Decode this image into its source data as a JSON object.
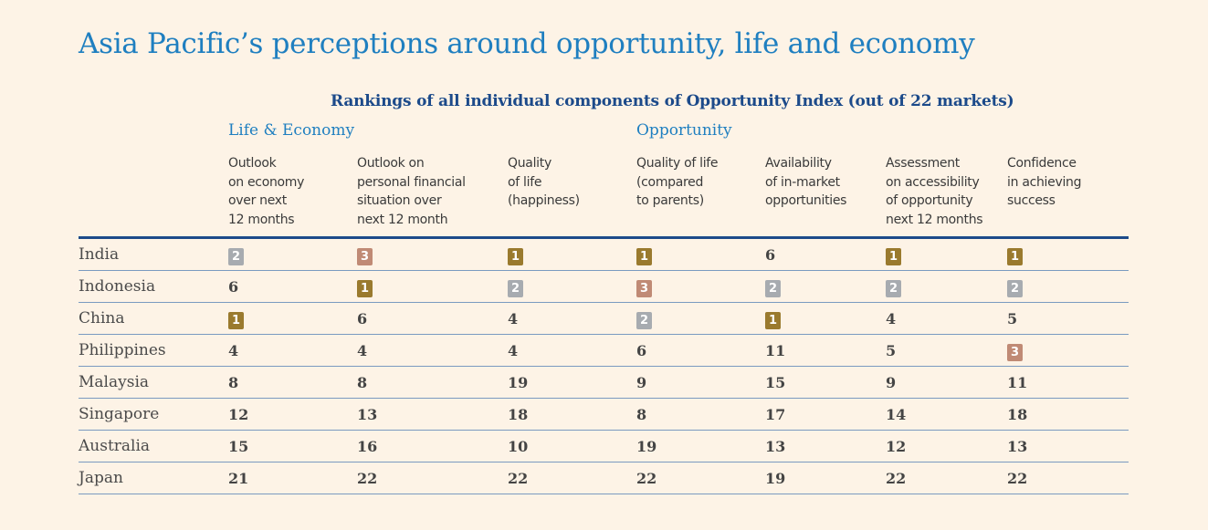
{
  "title": "Asia Pacific’s perceptions around opportunity, life and economy",
  "subtitle": "Rankings of all individual components of Opportunity Index (out of 22 markets)",
  "groups": {
    "life": "Life & Economy",
    "opportunity": "Opportunity"
  },
  "columns": [
    [
      "Outlook",
      "on economy",
      "over next",
      "12 months"
    ],
    [
      "Outlook on",
      "personal financial",
      "situation over",
      "next 12 month"
    ],
    [
      "Quality",
      "of life",
      "(happiness)"
    ],
    [
      "Quality of life",
      "(compared",
      "to parents)"
    ],
    [
      "Availability",
      "of in-market",
      "opportunities"
    ],
    [
      "Assessment",
      "on accessibility",
      "of opportunity",
      "next 12 months"
    ],
    [
      "Confidence",
      "in achieving",
      "success"
    ]
  ],
  "badge_colors": {
    "1": "#9a7a2e",
    "2": "#a7abb0",
    "3": "#c08a75"
  },
  "rows": [
    {
      "country": "India",
      "values": [
        "2",
        "3",
        "1",
        "1",
        "6",
        "1",
        "1"
      ]
    },
    {
      "country": "Indonesia",
      "values": [
        "6",
        "1",
        "2",
        "3",
        "2",
        "2",
        "2"
      ]
    },
    {
      "country": "China",
      "values": [
        "1",
        "6",
        "4",
        "2",
        "1",
        "4",
        "5"
      ]
    },
    {
      "country": "Philippines",
      "values": [
        "4",
        "4",
        "4",
        "6",
        "11",
        "5",
        "3"
      ]
    },
    {
      "country": "Malaysia",
      "values": [
        "8",
        "8",
        "19",
        "9",
        "15",
        "9",
        "11"
      ]
    },
    {
      "country": "Singapore",
      "values": [
        "12",
        "13",
        "18",
        "8",
        "17",
        "14",
        "18"
      ]
    },
    {
      "country": "Australia",
      "values": [
        "15",
        "16",
        "10",
        "19",
        "13",
        "12",
        "13"
      ]
    },
    {
      "country": "Japan",
      "values": [
        "21",
        "22",
        "22",
        "22",
        "19",
        "22",
        "22"
      ]
    }
  ]
}
